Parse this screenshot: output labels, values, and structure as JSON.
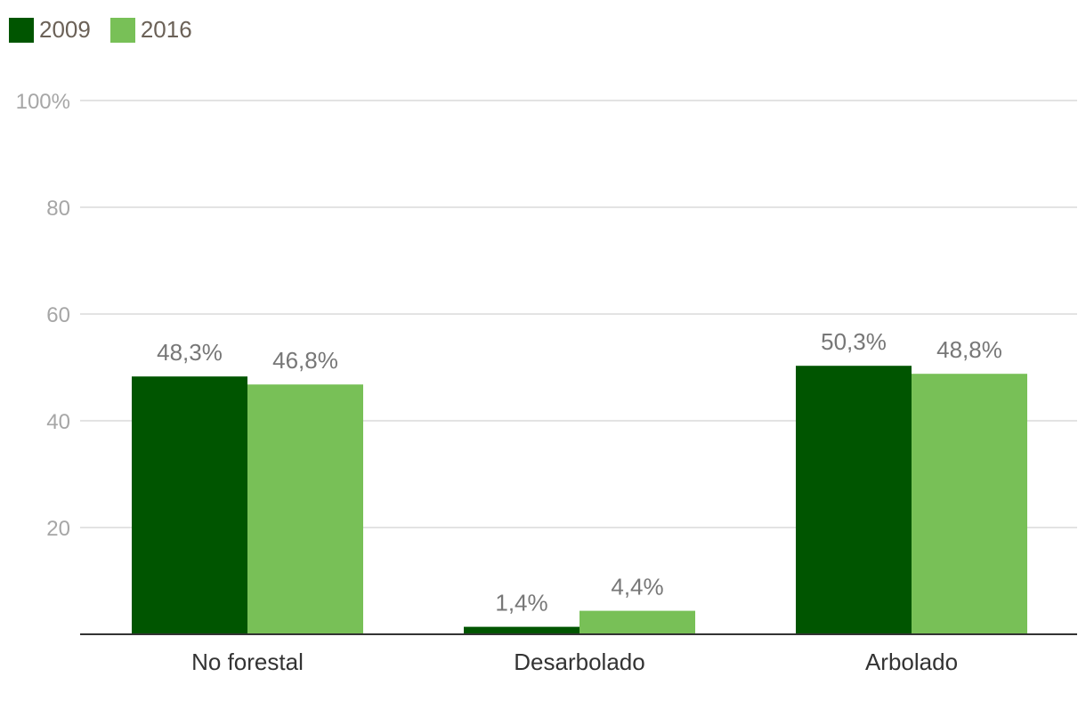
{
  "colors": {
    "series_2009": "#005500",
    "series_2016": "#78c057",
    "grid": "#e3e3e3",
    "axis": "#333333"
  },
  "legend": [
    {
      "label": "2009",
      "color": "#005500"
    },
    {
      "label": "2016",
      "color": "#78c057"
    }
  ],
  "chart_data": {
    "type": "bar",
    "categories": [
      "No forestal",
      "Desarbolado",
      "Arbolado"
    ],
    "series": [
      {
        "name": "2009",
        "values": [
          48.3,
          1.4,
          50.3
        ],
        "labels": [
          "48,3%",
          "1,4%",
          "50,3%"
        ]
      },
      {
        "name": "2016",
        "values": [
          46.8,
          4.4,
          48.8
        ],
        "labels": [
          "46,8%",
          "4,4%",
          "48,8%"
        ]
      }
    ],
    "ylim": [
      0,
      100
    ],
    "yticks": [
      20,
      40,
      60,
      80,
      100
    ],
    "ytick_labels": [
      "20",
      "40",
      "60",
      "80",
      "100%"
    ],
    "grid": true,
    "legend_position": "top-left",
    "title": "",
    "xlabel": "",
    "ylabel": ""
  }
}
